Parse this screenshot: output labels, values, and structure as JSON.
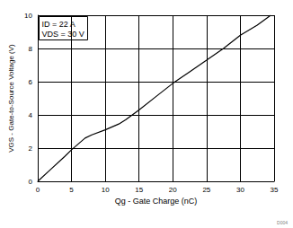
{
  "chart_data": {
    "type": "line",
    "x_label": "Qg - Gate Charge (nC)",
    "y_label": "VGS - Gate-to-Source Voltage (V)",
    "annotations": [
      "ID = 22 A",
      "VDS = 30 V"
    ],
    "footnote": "D004",
    "x": [
      0,
      2,
      4,
      5,
      6,
      7,
      8,
      10,
      12,
      13,
      15,
      17.5,
      20,
      22.5,
      25,
      27.5,
      30,
      32.5,
      34.5
    ],
    "values": [
      0,
      0.75,
      1.5,
      1.9,
      2.25,
      2.6,
      2.8,
      3.1,
      3.45,
      3.7,
      4.3,
      5.1,
      5.9,
      6.6,
      7.3,
      8.0,
      8.8,
      9.4,
      10
    ],
    "color": "#000000",
    "xlim": [
      0,
      35
    ],
    "xticks": [
      0,
      5,
      10,
      15,
      20,
      25,
      30,
      35
    ],
    "ylim": [
      0,
      10
    ],
    "yticks": [
      0,
      2,
      4,
      6,
      8,
      10
    ],
    "grid": true
  }
}
